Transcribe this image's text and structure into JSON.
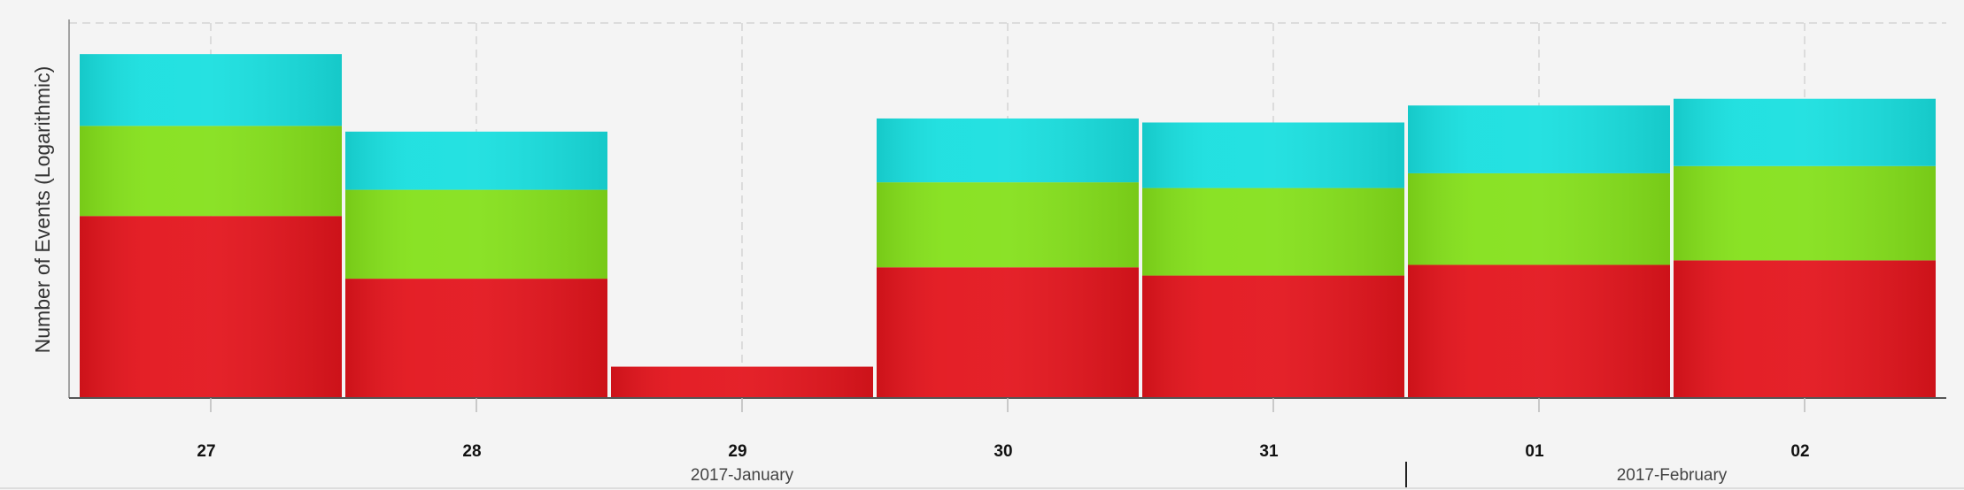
{
  "chart_data": {
    "type": "bar",
    "stacked": true,
    "log_scale": true,
    "ylabel": "Number of Events (Logarithmic)",
    "xlabel": "",
    "categories": [
      "27",
      "28",
      "29",
      "30",
      "31",
      "01",
      "02"
    ],
    "month_groups": [
      {
        "label": "2017-January",
        "categories": [
          "27",
          "28",
          "29",
          "30",
          "31"
        ]
      },
      {
        "label": "2017-February",
        "categories": [
          "01",
          "02"
        ]
      }
    ],
    "series": [
      {
        "values": [
          56,
          14,
          2,
          18,
          15,
          19,
          21
        ],
        "color": "#e3141c"
      },
      {
        "values": [
          355,
          86,
          0,
          100,
          89,
          125,
          148
        ],
        "color": "#84e01a"
      },
      {
        "values": [
          1600,
          262,
          0,
          366,
          339,
          501,
          579
        ],
        "color": "#18dfdf"
      }
    ],
    "ylim": [
      1,
      4000
    ],
    "grid": true
  }
}
